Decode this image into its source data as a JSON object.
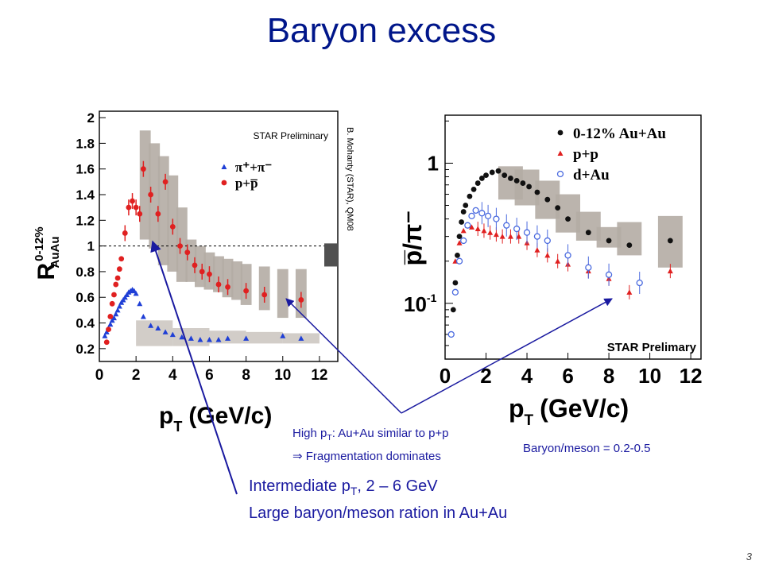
{
  "slide": {
    "title": "Baryon excess",
    "page_number": "3",
    "notes": {
      "high_pt_line1_pre": "High p",
      "high_pt_line1_sub": "T",
      "high_pt_line1_post": ": Au+Au similar to p+p",
      "high_pt_line2": "⇒ Fragmentation dominates",
      "ratio": "Baryon/meson = 0.2-0.5",
      "intermediate_line1_pre": "Intermediate p",
      "intermediate_line1_sub": "T",
      "intermediate_line1_post": ", 2 – 6 GeV",
      "intermediate_line2": "Large baryon/meson ration in Au+Au"
    },
    "colors": {
      "title": "#00168a",
      "notes": "#1a1aa0",
      "arrows": "#1a1aa0",
      "pion": "#1f3fd6",
      "proton": "#e02020",
      "auau": "#111111",
      "dau": "#4a6adf",
      "syst_band": "#b4aca4",
      "norm_box": "#505050"
    }
  },
  "chart_data": [
    {
      "type": "scatter",
      "ylabel": "R_AuAu 0-12%",
      "ylabel_main": "R",
      "ylabel_sup": "0-12%",
      "ylabel_sub": "AuAu",
      "xlabel": "p_T (GeV/c)",
      "xlabel_main": "p",
      "xlabel_sub": "T",
      "xlabel_unit": "(GeV/c)",
      "xlim": [
        0,
        13
      ],
      "ylim": [
        0.1,
        2.05
      ],
      "xticks": [
        "0",
        "2",
        "4",
        "6",
        "8",
        "10",
        "12"
      ],
      "yticks": [
        "0.2",
        "0.4",
        "0.6",
        "0.8",
        "1",
        "1.2",
        "1.4",
        "1.6",
        "1.8",
        "2"
      ],
      "reference_line": 1,
      "annotations": {
        "preliminary": "STAR Preliminary",
        "citation": "B. Mohanty (STAR), QM08"
      },
      "legend": {
        "placement": "top-right",
        "entries": [
          "π⁺+π⁻",
          "p+p̅"
        ]
      },
      "series": [
        {
          "name": "π⁺+π⁻",
          "color": "#1f3fd6",
          "marker": "triangle",
          "x": [
            0.3,
            0.4,
            0.5,
            0.6,
            0.7,
            0.8,
            0.9,
            1.0,
            1.1,
            1.2,
            1.3,
            1.4,
            1.5,
            1.6,
            1.7,
            1.8,
            1.9,
            2.0,
            2.2,
            2.4,
            2.8,
            3.2,
            3.6,
            4.0,
            4.5,
            5.0,
            5.5,
            6.0,
            6.5,
            7.0,
            8.0,
            10.0,
            11.0
          ],
          "y": [
            0.3,
            0.33,
            0.36,
            0.39,
            0.42,
            0.44,
            0.47,
            0.5,
            0.53,
            0.56,
            0.58,
            0.6,
            0.62,
            0.64,
            0.65,
            0.66,
            0.65,
            0.63,
            0.55,
            0.45,
            0.38,
            0.36,
            0.33,
            0.31,
            0.29,
            0.28,
            0.27,
            0.27,
            0.27,
            0.28,
            0.28,
            0.3,
            0.28
          ]
        },
        {
          "name": "p+p̅",
          "color": "#e02020",
          "marker": "circle",
          "x": [
            0.4,
            0.5,
            0.6,
            0.7,
            0.8,
            0.9,
            1.0,
            1.1,
            1.2,
            1.4,
            1.6,
            1.8,
            2.0,
            2.2,
            2.4,
            2.8,
            3.2,
            3.6,
            4.0,
            4.4,
            4.8,
            5.2,
            5.6,
            6.0,
            6.5,
            7.0,
            8.0,
            9.0,
            11.0
          ],
          "y": [
            0.25,
            0.35,
            0.45,
            0.55,
            0.62,
            0.7,
            0.75,
            0.82,
            0.9,
            1.1,
            1.3,
            1.35,
            1.3,
            1.25,
            1.6,
            1.4,
            1.25,
            1.5,
            1.15,
            1.0,
            0.95,
            0.85,
            0.8,
            0.78,
            0.7,
            0.68,
            0.65,
            0.62,
            0.58
          ]
        }
      ],
      "syst_bands": {
        "x": [
          2.5,
          3.0,
          3.5,
          4.0,
          4.5,
          5.0,
          5.5,
          6.0,
          6.5,
          7.0,
          7.5,
          8.0,
          9.0,
          10.0,
          11.0
        ],
        "low": [
          1.05,
          0.98,
          0.85,
          0.8,
          0.72,
          0.72,
          0.68,
          0.66,
          0.64,
          0.6,
          0.58,
          0.54,
          0.5,
          0.44,
          0.44
        ],
        "high": [
          1.9,
          1.8,
          1.7,
          1.55,
          1.3,
          1.05,
          1.0,
          0.95,
          0.92,
          0.9,
          0.88,
          0.86,
          0.84,
          0.82,
          0.82
        ]
      }
    },
    {
      "type": "scatter",
      "yscale": "log",
      "ylabel": "p̅/π⁻",
      "xlabel": "p_T (GeV/c)",
      "xlabel_main": "p",
      "xlabel_sub": "T",
      "xlabel_unit": "(GeV/c)",
      "xlim": [
        0,
        12.5
      ],
      "ylim": [
        0.04,
        2.2
      ],
      "xticks": [
        "0",
        "2",
        "4",
        "6",
        "8",
        "10",
        "12"
      ],
      "yticks_main": "1",
      "yticks_exp_base": "10",
      "yticks_exp_pow": "-1",
      "annotations": {
        "preliminary": "STAR Prelimary"
      },
      "legend": {
        "placement": "top-right",
        "entries": [
          "0-12% Au+Au",
          "p+p",
          "d+Au"
        ]
      },
      "series": [
        {
          "name": "0-12% Au+Au",
          "color": "#111111",
          "marker": "circle",
          "x": [
            0.3,
            0.4,
            0.5,
            0.6,
            0.7,
            0.8,
            0.9,
            1.0,
            1.2,
            1.4,
            1.6,
            1.8,
            2.0,
            2.3,
            2.6,
            2.9,
            3.2,
            3.5,
            3.8,
            4.1,
            4.5,
            5.0,
            5.5,
            6.0,
            7.0,
            8.0,
            9.0,
            11.0
          ],
          "y": [
            0.06,
            0.09,
            0.14,
            0.22,
            0.3,
            0.38,
            0.45,
            0.5,
            0.58,
            0.65,
            0.72,
            0.78,
            0.82,
            0.86,
            0.88,
            0.82,
            0.78,
            0.75,
            0.72,
            0.68,
            0.62,
            0.55,
            0.48,
            0.4,
            0.32,
            0.28,
            0.26,
            0.28
          ]
        },
        {
          "name": "p+p",
          "color": "#e02020",
          "marker": "triangle",
          "x": [
            0.5,
            0.7,
            0.9,
            1.1,
            1.3,
            1.6,
            1.9,
            2.2,
            2.5,
            2.8,
            3.2,
            3.6,
            4.0,
            4.5,
            5.0,
            5.5,
            6.0,
            7.0,
            8.0,
            9.0,
            11.0
          ],
          "y": [
            0.2,
            0.27,
            0.33,
            0.36,
            0.35,
            0.34,
            0.33,
            0.32,
            0.31,
            0.3,
            0.3,
            0.3,
            0.27,
            0.24,
            0.22,
            0.2,
            0.19,
            0.17,
            0.15,
            0.12,
            0.17
          ]
        },
        {
          "name": "d+Au",
          "color": "#4a6adf",
          "marker": "open-circle",
          "x": [
            0.3,
            0.5,
            0.7,
            0.9,
            1.1,
            1.3,
            1.5,
            1.8,
            2.1,
            2.5,
            3.0,
            3.5,
            4.0,
            4.5,
            5.0,
            6.0,
            7.0,
            8.0,
            9.5
          ],
          "y": [
            0.06,
            0.12,
            0.2,
            0.28,
            0.36,
            0.42,
            0.46,
            0.44,
            0.42,
            0.4,
            0.36,
            0.34,
            0.32,
            0.3,
            0.28,
            0.22,
            0.18,
            0.16,
            0.14
          ]
        }
      ],
      "syst_bands": {
        "x": [
          3.2,
          4.0,
          5.0,
          6.0,
          7.0,
          8.0,
          9.0,
          11.0
        ],
        "low": [
          0.55,
          0.5,
          0.4,
          0.32,
          0.28,
          0.25,
          0.22,
          0.18
        ],
        "high": [
          0.95,
          0.9,
          0.75,
          0.6,
          0.45,
          0.35,
          0.38,
          0.42
        ]
      }
    }
  ]
}
